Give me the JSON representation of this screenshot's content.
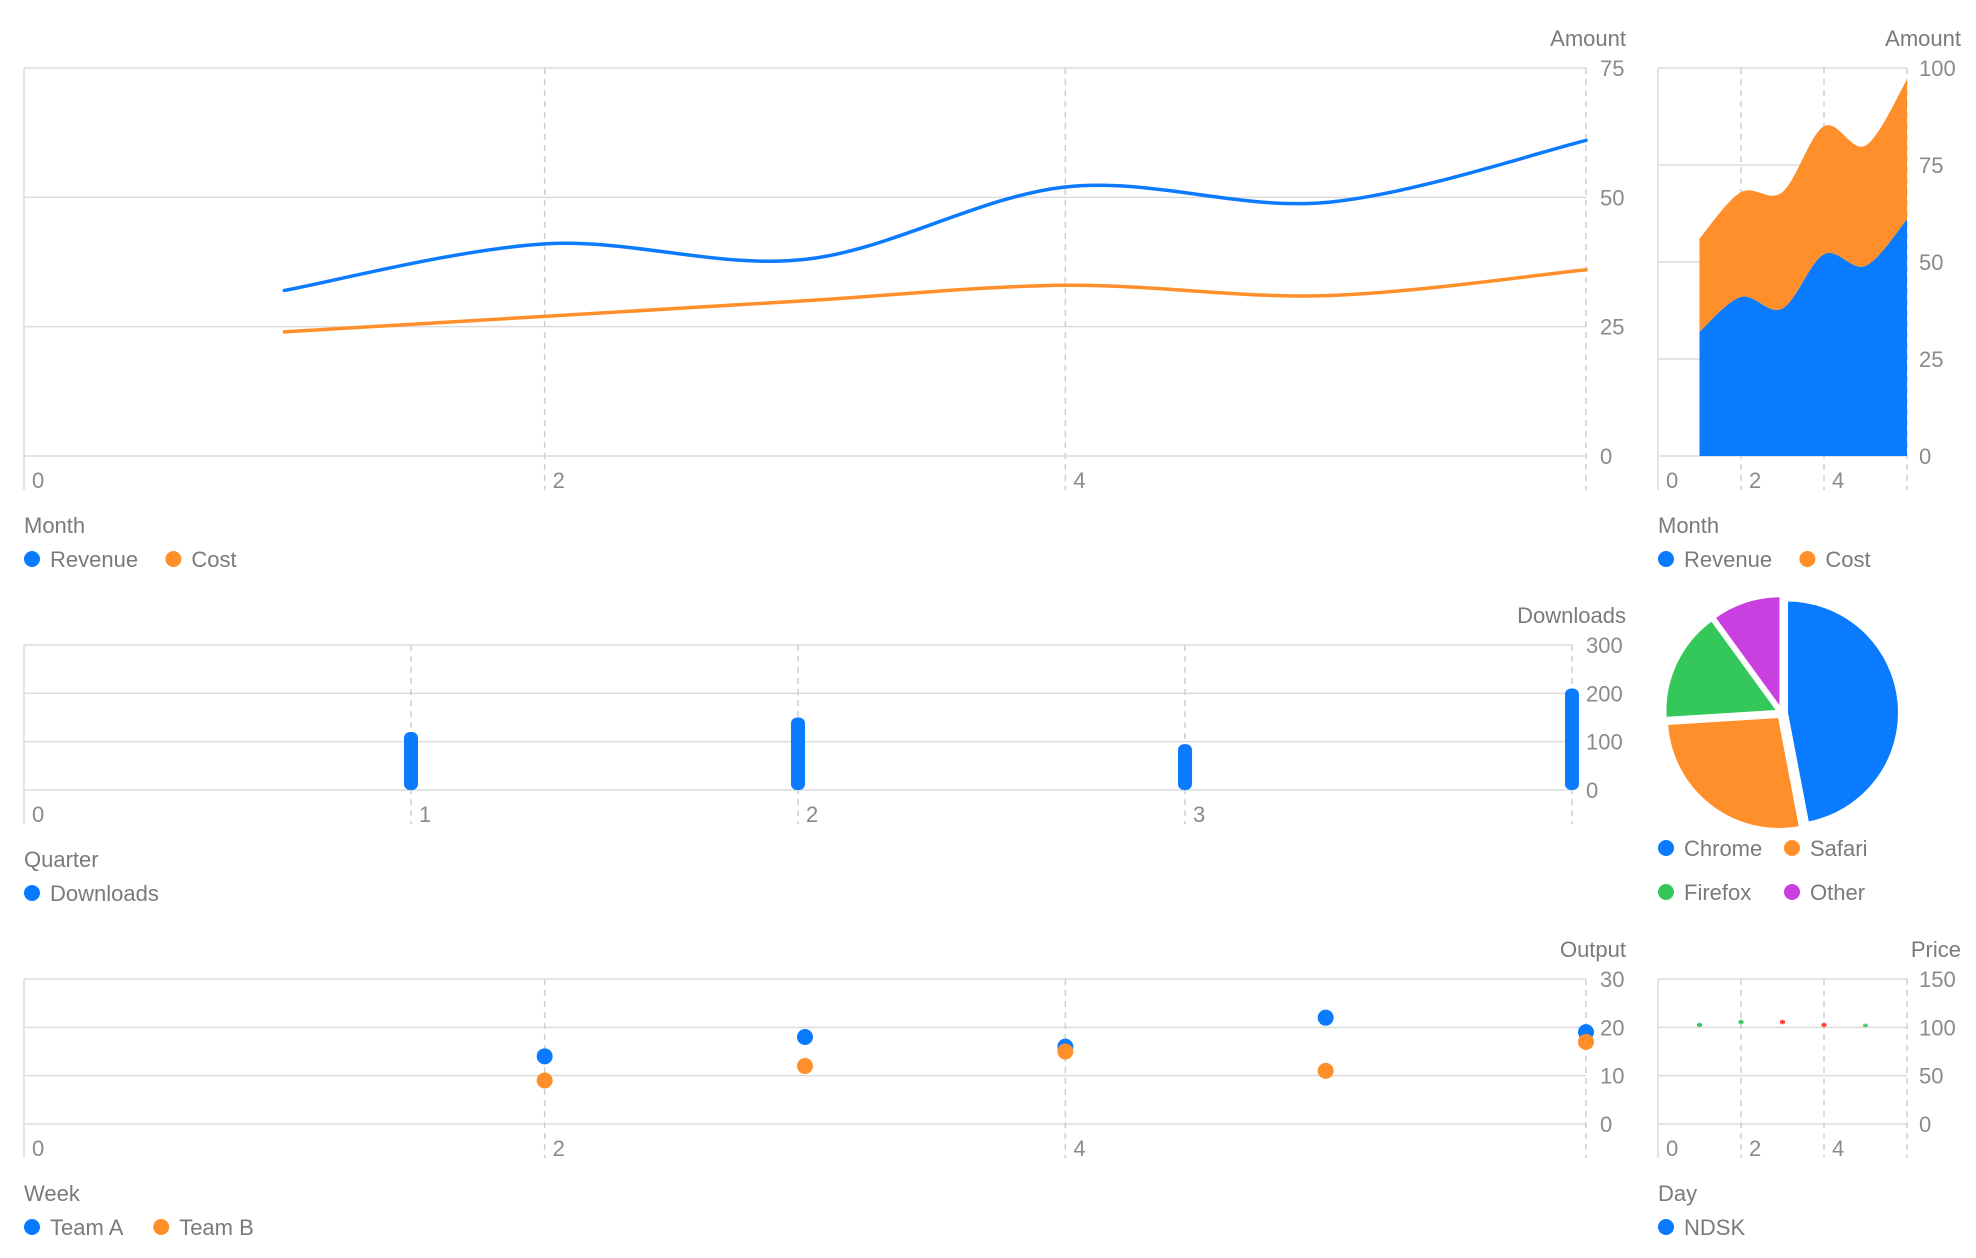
{
  "chart_data": [
    {
      "id": "line",
      "type": "line",
      "xlabel": "Month",
      "ylabel": "Amount",
      "xlim": [
        0,
        6
      ],
      "ylim": [
        0,
        75
      ],
      "xticks": [
        0,
        2,
        4
      ],
      "yticks": [
        0,
        25,
        50,
        75
      ],
      "grid": true,
      "x": [
        1,
        2,
        3,
        4,
        5,
        6
      ],
      "series": [
        {
          "name": "Revenue",
          "color": "#0a7aff",
          "values": [
            32,
            41,
            38,
            52,
            49,
            61
          ]
        },
        {
          "name": "Cost",
          "color": "#ff8f2a",
          "values": [
            24,
            27,
            30,
            33,
            31,
            36
          ]
        }
      ],
      "legend": [
        "Revenue",
        "Cost"
      ]
    },
    {
      "id": "area",
      "type": "area",
      "stacked": true,
      "xlabel": "Month",
      "ylabel": "Amount",
      "xlim": [
        0,
        6
      ],
      "ylim": [
        0,
        100
      ],
      "xticks": [
        0,
        2,
        4
      ],
      "yticks": [
        0,
        25,
        50,
        75,
        100
      ],
      "grid": true,
      "x": [
        1,
        2,
        3,
        4,
        5,
        6
      ],
      "series": [
        {
          "name": "Revenue",
          "color": "#0a7aff",
          "values": [
            32,
            41,
            38,
            52,
            49,
            61
          ]
        },
        {
          "name": "Cost",
          "color": "#ff8f2a",
          "values": [
            24,
            27,
            30,
            33,
            31,
            36
          ]
        }
      ],
      "legend": [
        "Revenue",
        "Cost"
      ]
    },
    {
      "id": "bar",
      "type": "bar",
      "xlabel": "Quarter",
      "ylabel": "Downloads",
      "xlim": [
        0,
        4
      ],
      "ylim": [
        0,
        300
      ],
      "xticks": [
        0,
        1,
        2,
        3
      ],
      "yticks": [
        0,
        100,
        200,
        300
      ],
      "grid": true,
      "x": [
        1,
        2,
        3,
        4
      ],
      "series": [
        {
          "name": "Downloads",
          "color": "#0a7aff",
          "values": [
            120,
            150,
            95,
            210
          ]
        }
      ],
      "legend": [
        "Downloads"
      ]
    },
    {
      "id": "pie",
      "type": "pie",
      "slices": [
        {
          "label": "Chrome",
          "value": 47,
          "color": "#0a7aff"
        },
        {
          "label": "Safari",
          "value": 27,
          "color": "#ff8f2a"
        },
        {
          "label": "Firefox",
          "value": 16,
          "color": "#34c759"
        },
        {
          "label": "Other",
          "value": 10,
          "color": "#c93fe0"
        }
      ],
      "legend": [
        "Chrome",
        "Safari",
        "Firefox",
        "Other"
      ]
    },
    {
      "id": "scatter",
      "type": "scatter",
      "xlabel": "Week",
      "ylabel": "Output",
      "xlim": [
        0,
        6
      ],
      "ylim": [
        0,
        30
      ],
      "xticks": [
        0,
        2,
        4
      ],
      "yticks": [
        0,
        10,
        20,
        30
      ],
      "grid": true,
      "x": [
        2,
        3,
        4,
        5,
        6
      ],
      "series": [
        {
          "name": "Team A",
          "color": "#0a7aff",
          "values": [
            14,
            18,
            16,
            22,
            19
          ]
        },
        {
          "name": "Team B",
          "color": "#ff8f2a",
          "values": [
            9,
            12,
            15,
            11,
            17
          ]
        }
      ],
      "legend": [
        "Team A",
        "Team B"
      ]
    },
    {
      "id": "candle",
      "type": "candlestick",
      "xlabel": "Day",
      "ylabel": "Price",
      "xlim": [
        0,
        6
      ],
      "ylim": [
        0,
        150
      ],
      "xticks": [
        0,
        2,
        4
      ],
      "yticks": [
        0,
        50,
        100,
        150
      ],
      "grid": true,
      "up_color": "#34c759",
      "down_color": "#ff3b30",
      "points": [
        {
          "x": 1,
          "open": 101,
          "close": 104,
          "low": 100,
          "high": 105
        },
        {
          "x": 2,
          "open": 104,
          "close": 107,
          "low": 103,
          "high": 108
        },
        {
          "x": 3,
          "open": 107,
          "close": 104,
          "low": 103,
          "high": 108
        },
        {
          "x": 4,
          "open": 104,
          "close": 101,
          "low": 100,
          "high": 105
        },
        {
          "x": 5,
          "open": 101,
          "close": 103,
          "low": 100,
          "high": 104
        }
      ],
      "legend": [
        "NDSK"
      ],
      "legend_color": "#0a7aff"
    }
  ]
}
